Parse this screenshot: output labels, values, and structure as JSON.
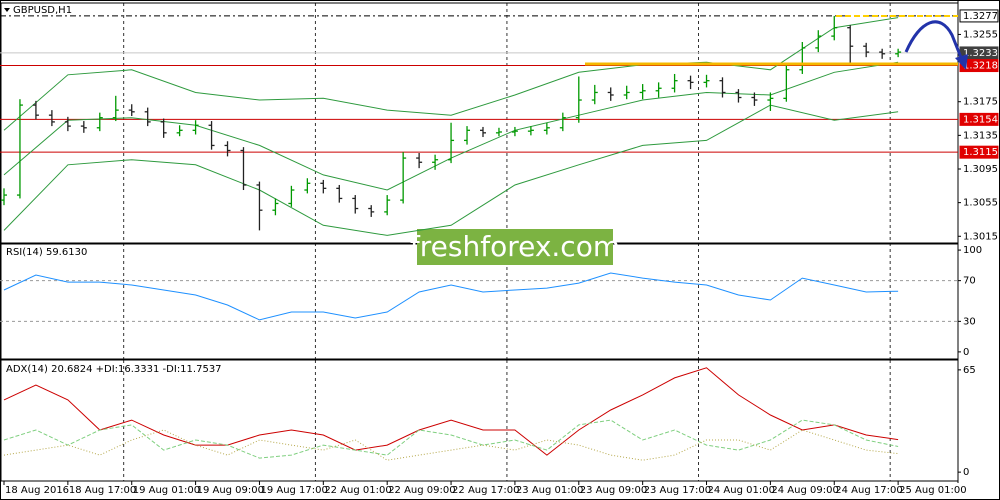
{
  "chart_data": [
    {
      "type": "candlestick",
      "title": "GBPUSD,H1",
      "watermark": "freshforex.com",
      "xlim": [
        -0.5,
        119.5
      ],
      "ylim": [
        1.3007,
        1.329
      ],
      "yticks": [
        1.3015,
        1.3055,
        1.3095,
        1.3135,
        1.3175,
        1.3255
      ],
      "up_color": "#009900",
      "down_color": "#222222",
      "day_separators": [
        15,
        39,
        63,
        87,
        111
      ],
      "x": [
        0,
        2,
        4,
        6,
        8,
        10,
        12,
        14,
        16,
        18,
        20,
        22,
        24,
        26,
        28,
        30,
        32,
        34,
        36,
        38,
        40,
        42,
        44,
        46,
        48,
        50,
        52,
        54,
        56,
        58,
        60,
        62,
        64,
        66,
        68,
        70,
        72,
        74,
        76,
        78,
        80,
        82,
        84,
        86,
        88,
        90,
        92,
        94,
        96,
        98,
        100,
        102,
        104,
        106,
        108,
        110,
        112
      ],
      "open": [
        1.3058,
        1.3064,
        1.3171,
        1.3159,
        1.3151,
        1.3146,
        1.3144,
        1.3156,
        1.3165,
        1.3163,
        1.3151,
        1.3138,
        1.3141,
        1.3147,
        1.3123,
        1.3117,
        1.3076,
        1.3046,
        1.3054,
        1.307,
        1.3078,
        1.3072,
        1.306,
        1.3048,
        1.3044,
        1.3058,
        1.3108,
        1.3103,
        1.3106,
        1.3129,
        1.3141,
        1.3138,
        1.3139,
        1.314,
        1.3141,
        1.3144,
        1.3156,
        1.3177,
        1.3186,
        1.3183,
        1.3186,
        1.3188,
        1.3191,
        1.32,
        1.3198,
        1.32,
        1.3186,
        1.318,
        1.3177,
        1.3179,
        1.3213,
        1.3239,
        1.3253,
        1.3263,
        1.3241,
        1.3234,
        1.3232
      ],
      "high": [
        1.3072,
        1.3178,
        1.3176,
        1.3165,
        1.3157,
        1.3152,
        1.3162,
        1.3182,
        1.3172,
        1.3168,
        1.3155,
        1.3147,
        1.3153,
        1.3152,
        1.3128,
        1.3121,
        1.308,
        1.306,
        1.3075,
        1.3084,
        1.3082,
        1.3076,
        1.3064,
        1.3052,
        1.3064,
        1.3115,
        1.3114,
        1.3112,
        1.315,
        1.3146,
        1.3145,
        1.3144,
        1.3145,
        1.3146,
        1.315,
        1.3162,
        1.3205,
        1.3195,
        1.3192,
        1.3194,
        1.3196,
        1.3198,
        1.3208,
        1.3206,
        1.3207,
        1.3204,
        1.319,
        1.3186,
        1.3186,
        1.322,
        1.3246,
        1.326,
        1.3277,
        1.3266,
        1.3245,
        1.3238,
        1.3238
      ],
      "low": [
        1.3052,
        1.306,
        1.3154,
        1.3146,
        1.314,
        1.3138,
        1.314,
        1.3152,
        1.3158,
        1.3146,
        1.3132,
        1.3134,
        1.3136,
        1.3118,
        1.311,
        1.307,
        1.3022,
        1.304,
        1.305,
        1.3066,
        1.3066,
        1.3055,
        1.3042,
        1.3038,
        1.304,
        1.3054,
        1.3096,
        1.3094,
        1.3102,
        1.3124,
        1.3133,
        1.3134,
        1.3134,
        1.3135,
        1.3136,
        1.314,
        1.315,
        1.3172,
        1.3176,
        1.3178,
        1.3178,
        1.318,
        1.3186,
        1.319,
        1.3192,
        1.318,
        1.3174,
        1.317,
        1.3164,
        1.3175,
        1.3208,
        1.3234,
        1.3248,
        1.3218,
        1.3228,
        1.3226,
        1.3228
      ],
      "close": [
        1.3064,
        1.3171,
        1.3159,
        1.3151,
        1.3146,
        1.3144,
        1.3156,
        1.3165,
        1.3163,
        1.3151,
        1.3138,
        1.3141,
        1.3147,
        1.3123,
        1.3117,
        1.3076,
        1.3046,
        1.3054,
        1.307,
        1.3078,
        1.3072,
        1.306,
        1.3048,
        1.3044,
        1.3058,
        1.3108,
        1.3103,
        1.3106,
        1.3129,
        1.3141,
        1.3138,
        1.3139,
        1.314,
        1.3141,
        1.3144,
        1.3156,
        1.3177,
        1.3186,
        1.3183,
        1.3186,
        1.3188,
        1.3191,
        1.32,
        1.3198,
        1.32,
        1.3186,
        1.318,
        1.3177,
        1.3179,
        1.3213,
        1.3239,
        1.3253,
        1.3263,
        1.3241,
        1.3234,
        1.3232,
        1.3234
      ],
      "series": [
        {
          "color": "#2e9a3e",
          "x": [
            0,
            8,
            16,
            24,
            32,
            40,
            48,
            56,
            64,
            72,
            80,
            88,
            96,
            104,
            112
          ],
          "values": [
            1.3141,
            1.3207,
            1.3213,
            1.3186,
            1.3177,
            1.3179,
            1.3165,
            1.3159,
            1.3183,
            1.321,
            1.3219,
            1.3222,
            1.3213,
            1.3263,
            1.3275
          ]
        },
        {
          "color": "#2e9a3e",
          "x": [
            0,
            8,
            16,
            24,
            32,
            40,
            48,
            56,
            64,
            72,
            80,
            88,
            96,
            104,
            112
          ],
          "values": [
            1.3088,
            1.3153,
            1.3156,
            1.3147,
            1.3123,
            1.3088,
            1.307,
            1.3108,
            1.3141,
            1.3159,
            1.3177,
            1.3186,
            1.3183,
            1.321,
            1.3222
          ]
        },
        {
          "color": "#2e9a3e",
          "x": [
            0,
            8,
            16,
            24,
            32,
            40,
            48,
            56,
            64,
            72,
            80,
            88,
            96,
            104,
            112
          ],
          "values": [
            1.3022,
            1.31,
            1.3106,
            1.31,
            1.307,
            1.3028,
            1.3016,
            1.3028,
            1.3076,
            1.31,
            1.3123,
            1.3129,
            1.3171,
            1.3153,
            1.3163
          ]
        }
      ],
      "levels": [
        {
          "value": 1.3277,
          "label": "1.3277",
          "color": "#000000",
          "box": "#ffffff",
          "text_color": "#000000",
          "dashed": true
        },
        {
          "value": 1.3233,
          "label": "1.3233",
          "color": "#c8c8c8",
          "box": "#404040",
          "text_color": "#ffffff",
          "dashed": false
        },
        {
          "value": 1.3218,
          "label": "1.3218",
          "color": "#cc0000",
          "box": "#e00000",
          "text_color": "#ffffff",
          "dashed": false
        },
        {
          "value": 1.3154,
          "label": "1.3154",
          "color": "#cc0000",
          "box": "#e00000",
          "text_color": "#ffffff",
          "dashed": false
        },
        {
          "value": 1.3115,
          "label": "1.3115",
          "color": "#cc0000",
          "box": "#e00000",
          "text_color": "#ffffff",
          "dashed": false
        }
      ]
    },
    {
      "type": "line",
      "title": "RSI(14) 59.6130",
      "xlim": [
        -0.5,
        119.5
      ],
      "ylim": [
        -6,
        105
      ],
      "yticks": [
        0,
        30,
        70,
        100
      ],
      "grid_levels": [
        30,
        70
      ],
      "x": [
        0,
        4,
        8,
        12,
        16,
        20,
        24,
        28,
        32,
        36,
        40,
        44,
        48,
        52,
        56,
        60,
        64,
        68,
        72,
        76,
        80,
        84,
        88,
        92,
        96,
        100,
        104,
        108,
        112
      ],
      "series": [
        {
          "color": "#1e90ff",
          "dash": "none",
          "values": [
            60.8,
            75.5,
            68.6,
            68.6,
            65.7,
            60.8,
            55.9,
            46.1,
            31.4,
            39.2,
            39.2,
            33.3,
            39.2,
            58.8,
            65.7,
            58.8,
            60.8,
            62.7,
            67.6,
            77.5,
            72.5,
            68.6,
            65.7,
            55.9,
            51.0,
            72.5,
            65.7,
            58.8,
            59.6
          ]
        }
      ]
    },
    {
      "type": "line",
      "title": "ADX(14) 20.6824 +DI:16.3331 -DI:11.7537",
      "xlim": [
        -0.5,
        119.5
      ],
      "ylim": [
        -5,
        70
      ],
      "yticks": [
        0,
        65
      ],
      "xticks": [
        {
          "value": 0,
          "label": "18 Aug 2016"
        },
        {
          "value": 8,
          "label": "18 Aug 17:00"
        },
        {
          "value": 16,
          "label": "19 Aug 01:00"
        },
        {
          "value": 24,
          "label": "19 Aug 09:00"
        },
        {
          "value": 32,
          "label": "19 Aug 17:00"
        },
        {
          "value": 40,
          "label": "22 Aug 01:00"
        },
        {
          "value": 48,
          "label": "22 Aug 09:00"
        },
        {
          "value": 56,
          "label": "22 Aug 17:00"
        },
        {
          "value": 64,
          "label": "23 Aug 01:00"
        },
        {
          "value": 72,
          "label": "23 Aug 09:00"
        },
        {
          "value": 80,
          "label": "23 Aug 17:00"
        },
        {
          "value": 88,
          "label": "24 Aug 01:00"
        },
        {
          "value": 96,
          "label": "24 Aug 09:00"
        },
        {
          "value": 104,
          "label": "24 Aug 17:00"
        },
        {
          "value": 112,
          "label": "25 Aug 01:00"
        }
      ],
      "x": [
        0,
        4,
        8,
        12,
        16,
        20,
        24,
        28,
        32,
        36,
        40,
        44,
        48,
        52,
        56,
        60,
        64,
        68,
        72,
        76,
        80,
        84,
        88,
        92,
        96,
        100,
        104,
        108,
        112
      ],
      "series": [
        {
          "color": "#cc0000",
          "dash": "none",
          "values": [
            45.9,
            55.4,
            45.9,
            26.8,
            33.1,
            23.6,
            17.2,
            17.2,
            23.6,
            26.8,
            23.6,
            14.0,
            17.2,
            26.8,
            33.1,
            26.8,
            26.8,
            10.8,
            26.8,
            39.5,
            49.1,
            59.9,
            66.3,
            49.1,
            36.3,
            26.8,
            30.0,
            23.6,
            20.7
          ]
        },
        {
          "color": "#7fcf7f",
          "dash": "4 2",
          "values": [
            20.4,
            26.8,
            17.2,
            26.8,
            30.0,
            14.0,
            20.4,
            17.2,
            8.9,
            10.8,
            17.2,
            14.0,
            10.8,
            26.8,
            23.6,
            17.2,
            20.4,
            14.0,
            30.0,
            33.1,
            20.4,
            26.8,
            17.2,
            14.0,
            20.4,
            33.1,
            30.0,
            20.4,
            16.3
          ]
        },
        {
          "color": "#b5a84a",
          "dash": "1 2",
          "values": [
            10.8,
            14.0,
            17.2,
            10.8,
            20.4,
            26.8,
            17.2,
            10.8,
            20.4,
            17.2,
            14.0,
            20.4,
            7.6,
            10.8,
            14.0,
            17.2,
            14.0,
            20.4,
            17.2,
            10.8,
            7.6,
            10.8,
            20.4,
            20.4,
            14.0,
            26.8,
            20.4,
            14.0,
            11.8
          ]
        }
      ]
    }
  ]
}
